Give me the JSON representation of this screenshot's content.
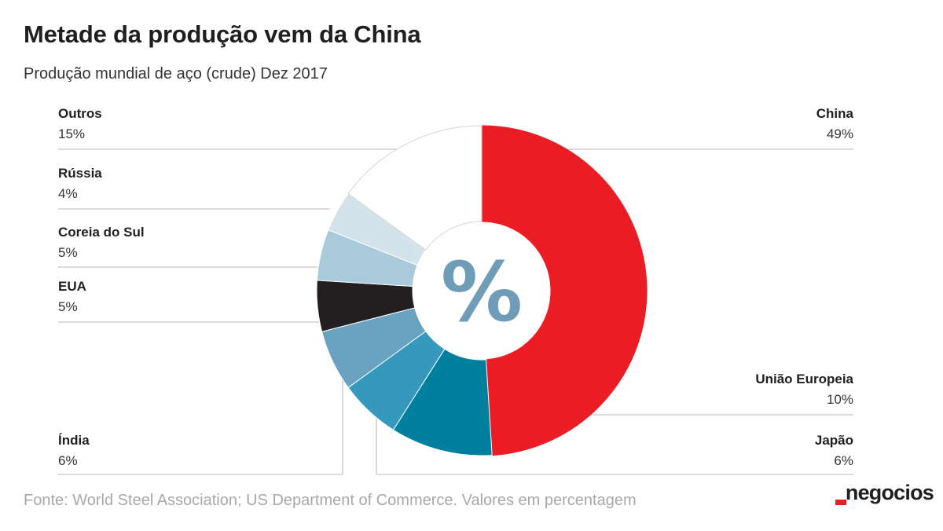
{
  "title": "Metade da produção vem da China",
  "subtitle": "Produção mundial de aço (crude) Dez 2017",
  "source": "Fonte: World Steel Association; US Department of Commerce. Valores em percentagem",
  "brand": "negocios",
  "colors": {
    "accent": "#ec1c24",
    "brand_mark": "#ec1c24",
    "center_symbol": "#6f9db8",
    "leader_line": "#c6c6c6"
  },
  "chart_data": {
    "type": "pie",
    "variant": "donut",
    "center_label": "%",
    "unit": "%",
    "start_angle_deg": 0,
    "direction": "clockwise",
    "slices": [
      {
        "name": "China",
        "value": 49,
        "value_label": "49%",
        "color": "#ec1c24",
        "stroke": "#ec1c24"
      },
      {
        "name": "União Europeia",
        "value": 10,
        "value_label": "10%",
        "color": "#00809f",
        "stroke": "#ffffff"
      },
      {
        "name": "Japão",
        "value": 6,
        "value_label": "6%",
        "color": "#3499bd",
        "stroke": "#ffffff"
      },
      {
        "name": "Índia",
        "value": 6,
        "value_label": "6%",
        "color": "#69a3bf",
        "stroke": "#ffffff"
      },
      {
        "name": "EUA",
        "value": 5,
        "value_label": "5%",
        "color": "#231f20",
        "stroke": "#ffffff"
      },
      {
        "name": "Coreia do Sul",
        "value": 5,
        "value_label": "5%",
        "color": "#a8cadb",
        "stroke": "#ffffff"
      },
      {
        "name": "Rússia",
        "value": 4,
        "value_label": "4%",
        "color": "#d3e3ec",
        "stroke": "#ffffff"
      },
      {
        "name": "Outros",
        "value": 15,
        "value_label": "15%",
        "color": "#ffffff",
        "stroke": "#d4d4d4"
      }
    ]
  }
}
